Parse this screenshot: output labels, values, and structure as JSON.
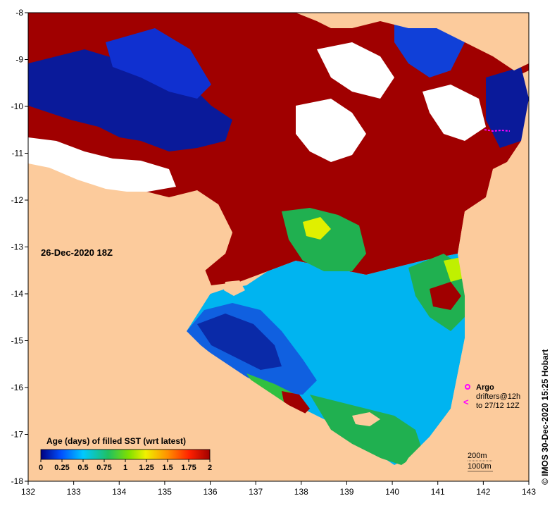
{
  "map": {
    "lon_axis": {
      "min": 132,
      "max": 143,
      "ticks": [
        "132",
        "133",
        "134",
        "135",
        "136",
        "137",
        "138",
        "139",
        "140",
        "141",
        "142",
        "143"
      ]
    },
    "lat_axis": {
      "min": -18,
      "max": -8,
      "ticks": [
        "-8",
        "-9",
        "-10",
        "-11",
        "-12",
        "-13",
        "-14",
        "-15",
        "-16",
        "-17",
        "-18"
      ]
    },
    "timestamp_label": "26-Dec-2020 18Z",
    "credit": "© IMOS 30-Dec-2020 15:25 Hobart",
    "legend": {
      "title": "Age (days) of filled SST (wrt latest)",
      "ticks": [
        "0",
        "0.25",
        "0.5",
        "0.75",
        "1",
        "1.25",
        "1.5",
        "1.75",
        "2"
      ],
      "colormap": [
        "#000080",
        "#0050ff",
        "#00c8ff",
        "#20c060",
        "#80e000",
        "#f0f000",
        "#ff9000",
        "#ff2000",
        "#a00000"
      ]
    },
    "markers_legend": {
      "argo_label": "Argo",
      "drifters_label": "drifters@12h",
      "drifters_sub": "to 27/12 12Z",
      "argo_color": "#ff00ff",
      "drifter_color": "#ff00ff"
    },
    "isobaths": {
      "label_200": "200m",
      "label_1000": "1000m"
    },
    "colors": {
      "land": "#fccb9c",
      "no_data": "#ffffff",
      "frame": "#000000"
    }
  }
}
